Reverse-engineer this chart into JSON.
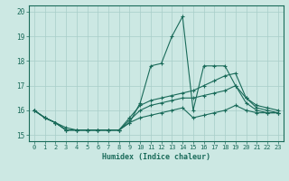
{
  "background_color": "#cce8e3",
  "grid_color": "#a8cdc8",
  "line_color": "#1a6b5a",
  "xlabel": "Humidex (Indice chaleur)",
  "xlim": [
    -0.5,
    23.5
  ],
  "ylim": [
    14.75,
    20.25
  ],
  "yticks": [
    15,
    16,
    17,
    18,
    19,
    20
  ],
  "xticks": [
    0,
    1,
    2,
    3,
    4,
    5,
    6,
    7,
    8,
    9,
    10,
    11,
    12,
    13,
    14,
    15,
    16,
    17,
    18,
    19,
    20,
    21,
    22,
    23
  ],
  "series": [
    {
      "x": [
        0,
        1,
        2,
        3,
        4,
        5,
        6,
        7,
        8,
        9,
        10,
        11,
        12,
        13,
        14,
        15,
        16,
        17,
        18,
        19,
        20,
        21,
        22,
        23
      ],
      "y": [
        16.0,
        15.7,
        15.5,
        15.2,
        15.2,
        15.2,
        15.2,
        15.2,
        15.2,
        15.5,
        16.3,
        17.8,
        17.9,
        19.0,
        19.8,
        16.0,
        17.8,
        17.8,
        17.8,
        17.0,
        16.5,
        16.1,
        16.0,
        15.9
      ]
    },
    {
      "x": [
        0,
        1,
        2,
        3,
        4,
        5,
        6,
        7,
        8,
        9,
        10,
        11,
        12,
        13,
        14,
        15,
        16,
        17,
        18,
        19,
        20,
        21,
        22,
        23
      ],
      "y": [
        16.0,
        15.7,
        15.5,
        15.3,
        15.2,
        15.2,
        15.2,
        15.2,
        15.2,
        15.7,
        16.2,
        16.4,
        16.5,
        16.6,
        16.7,
        16.8,
        17.0,
        17.2,
        17.4,
        17.5,
        16.5,
        16.2,
        16.1,
        16.0
      ]
    },
    {
      "x": [
        0,
        1,
        2,
        3,
        4,
        5,
        6,
        7,
        8,
        9,
        10,
        11,
        12,
        13,
        14,
        15,
        16,
        17,
        18,
        19,
        20,
        21,
        22,
        23
      ],
      "y": [
        16.0,
        15.7,
        15.5,
        15.2,
        15.2,
        15.2,
        15.2,
        15.2,
        15.2,
        15.6,
        16.0,
        16.2,
        16.3,
        16.4,
        16.5,
        16.5,
        16.6,
        16.7,
        16.8,
        17.0,
        16.3,
        16.0,
        15.9,
        15.9
      ]
    },
    {
      "x": [
        0,
        1,
        2,
        3,
        4,
        5,
        6,
        7,
        8,
        9,
        10,
        11,
        12,
        13,
        14,
        15,
        16,
        17,
        18,
        19,
        20,
        21,
        22,
        23
      ],
      "y": [
        16.0,
        15.7,
        15.5,
        15.2,
        15.2,
        15.2,
        15.2,
        15.2,
        15.2,
        15.5,
        15.7,
        15.8,
        15.9,
        16.0,
        16.1,
        15.7,
        15.8,
        15.9,
        16.0,
        16.2,
        16.0,
        15.9,
        15.9,
        15.9
      ]
    }
  ]
}
